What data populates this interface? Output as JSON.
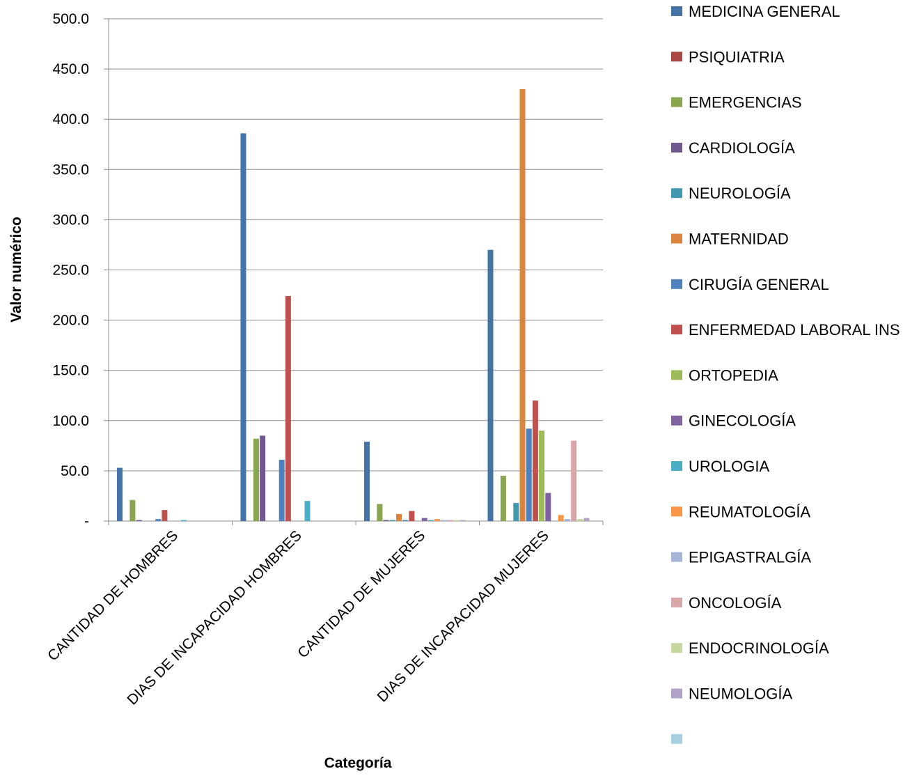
{
  "chart_data": {
    "type": "bar",
    "title": "",
    "xlabel": "Categoría",
    "ylabel": "Valor numérico",
    "ylim": [
      0,
      500
    ],
    "y_ticks": [
      "500.0",
      "450.0",
      "400.0",
      "350.0",
      "300.0",
      "250.0",
      "200.0",
      "150.0",
      "100.0",
      "50.0",
      "-"
    ],
    "y_tick_values": [
      500,
      450,
      400,
      350,
      300,
      250,
      200,
      150,
      100,
      50,
      0
    ],
    "grid": true,
    "legend_position": "right",
    "categories": [
      "CANTIDAD DE HOMBRES",
      "DIAS DE INCAPACIDAD HOMBRES",
      "CANTIDAD DE MUJERES",
      "DIAS DE INCAPACIDAD MUJERES"
    ],
    "series": [
      {
        "name": "MEDICINA GENERAL",
        "color": "#4572A7",
        "values": [
          53,
          386,
          79,
          270
        ]
      },
      {
        "name": "PSIQUIATRIA",
        "color": "#AA4643",
        "values": [
          0,
          0,
          0,
          0
        ]
      },
      {
        "name": "EMERGENCIAS",
        "color": "#89A54E",
        "values": [
          21,
          82,
          17,
          45
        ]
      },
      {
        "name": "CARDIOLOGÍA",
        "color": "#71588F",
        "values": [
          1,
          85,
          1,
          0
        ]
      },
      {
        "name": "NEUROLOGÍA",
        "color": "#4198AF",
        "values": [
          0,
          0,
          1,
          18
        ]
      },
      {
        "name": "MATERNIDAD",
        "color": "#DB843D",
        "values": [
          0,
          0,
          7,
          430
        ]
      },
      {
        "name": "CIRUGÍA GENERAL",
        "color": "#4F81BD",
        "values": [
          2,
          61,
          1,
          92
        ]
      },
      {
        "name": "ENFERMEDAD LABORAL INS",
        "color": "#C0504D",
        "values": [
          11,
          224,
          10,
          120
        ]
      },
      {
        "name": "ORTOPEDIA",
        "color": "#9BBB59",
        "values": [
          0,
          0,
          0,
          90
        ]
      },
      {
        "name": "GINECOLOGÍA",
        "color": "#8064A2",
        "values": [
          0,
          0,
          3,
          28
        ]
      },
      {
        "name": "UROLOGIA",
        "color": "#4BACC6",
        "values": [
          1,
          20,
          1,
          0
        ]
      },
      {
        "name": "REUMATOLOGÍA",
        "color": "#F79646",
        "values": [
          0,
          0,
          2,
          6
        ]
      },
      {
        "name": "EPIGASTRALGÍA",
        "color": "#A5B6D9",
        "values": [
          0,
          0,
          1,
          2
        ]
      },
      {
        "name": "ONCOLOGÍA",
        "color": "#D6A7A6",
        "values": [
          0,
          0,
          1,
          80
        ]
      },
      {
        "name": "ENDOCRINOLOGÍA",
        "color": "#C3D69B",
        "values": [
          0,
          0,
          1,
          2
        ]
      },
      {
        "name": "NEUMOLOGÍA",
        "color": "#B3A2C7",
        "values": [
          0,
          0,
          1,
          3
        ]
      },
      {
        "name": "",
        "color": "#A6D0E0",
        "values": [
          0,
          0,
          0,
          0
        ]
      }
    ]
  }
}
